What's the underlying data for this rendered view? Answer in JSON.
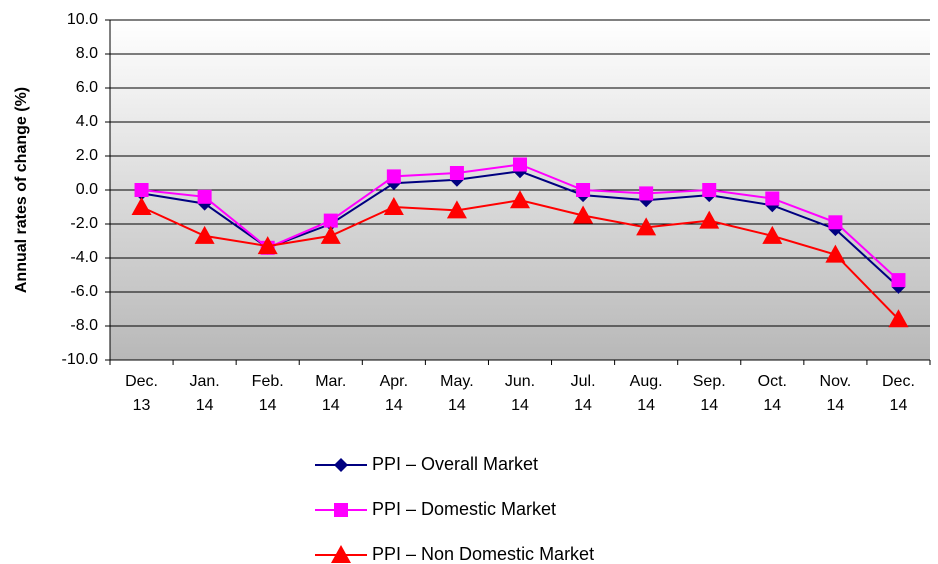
{
  "chart_data": {
    "type": "line",
    "y_label": "Annual rates of change (%)",
    "categories": [
      "Dec. 13",
      "Jan. 14",
      "Feb. 14",
      "Mar. 14",
      "Apr. 14",
      "May. 14",
      "Jun. 14",
      "Jul. 14",
      "Aug. 14",
      "Sep. 14",
      "Oct. 14",
      "Nov. 14",
      "Dec. 14"
    ],
    "series": [
      {
        "name": "PPI – Overall Market",
        "color": "#000080",
        "marker": "diamond",
        "values": [
          -0.2,
          -0.8,
          -3.4,
          -2.0,
          0.4,
          0.6,
          1.1,
          -0.3,
          -0.6,
          -0.3,
          -0.9,
          -2.3,
          -5.7
        ]
      },
      {
        "name": "PPI – Domestic Market",
        "color": "#ff00ff",
        "marker": "square",
        "values": [
          0.0,
          -0.4,
          -3.4,
          -1.8,
          0.8,
          1.0,
          1.5,
          0.0,
          -0.2,
          0.0,
          -0.5,
          -1.9,
          -5.3
        ]
      },
      {
        "name": "PPI – Non Domestic Market",
        "color": "#ff0000",
        "marker": "triangle",
        "values": [
          -1.0,
          -2.7,
          -3.3,
          -2.7,
          -1.0,
          -1.2,
          -0.6,
          -1.5,
          -2.2,
          -1.8,
          -2.7,
          -3.8,
          -7.6
        ]
      }
    ],
    "ylim": [
      -10,
      10
    ],
    "yticks": [
      {
        "value": -10,
        "label": "-10.0"
      },
      {
        "value": -8,
        "label": "-8.0"
      },
      {
        "value": -6,
        "label": "-6.0"
      },
      {
        "value": -4,
        "label": "-4.0"
      },
      {
        "value": -2,
        "label": "-2.0"
      },
      {
        "value": 0,
        "label": "0.0"
      },
      {
        "value": 2,
        "label": "2.0"
      },
      {
        "value": 4,
        "label": "4.0"
      },
      {
        "value": 6,
        "label": "6.0"
      },
      {
        "value": 8,
        "label": "8.0"
      },
      {
        "value": 10,
        "label": "10.0"
      }
    ],
    "grid": true,
    "legend": "bottom"
  }
}
